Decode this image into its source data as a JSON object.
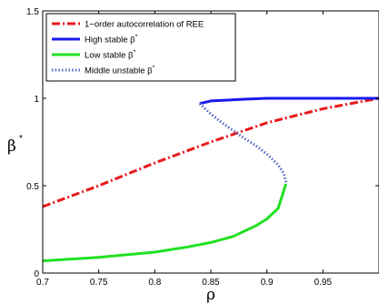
{
  "chart_data": {
    "type": "line",
    "xlabel": "ρ",
    "ylabel": "β",
    "ylabel_sup": "*",
    "xlim": [
      0.7,
      1.0
    ],
    "ylim": [
      0,
      1.5
    ],
    "x_ticks": [
      0.7,
      0.75,
      0.8,
      0.85,
      0.9,
      0.95
    ],
    "x_tick_labels": [
      "0.7",
      "0.75",
      "0.8",
      "0.85",
      "0.9",
      "0.95"
    ],
    "y_ticks": [
      0,
      0.5,
      1,
      1.5
    ],
    "y_tick_labels": [
      "0",
      "0.5",
      "1",
      "1.5"
    ],
    "grid": false,
    "legend_position": "top-left",
    "series": [
      {
        "name": "1−order autocorrelation of REE",
        "color": "#e8191a",
        "style": "dash-dot",
        "x": [
          0.7,
          0.75,
          0.8,
          0.85,
          0.9,
          0.95,
          1.0
        ],
        "y": [
          0.38,
          0.5,
          0.63,
          0.75,
          0.86,
          0.94,
          1.0
        ]
      },
      {
        "name": "High stable β",
        "name_sup": "*",
        "color": "#1a1aee",
        "style": "solid",
        "x": [
          0.84,
          0.85,
          0.88,
          0.9,
          0.95,
          1.0
        ],
        "y": [
          0.97,
          0.985,
          0.995,
          1.0,
          1.0,
          1.0
        ]
      },
      {
        "name": "Low stable β",
        "name_sup": "*",
        "color": "#22e022",
        "style": "solid",
        "x": [
          0.7,
          0.75,
          0.8,
          0.83,
          0.85,
          0.87,
          0.88,
          0.89,
          0.9,
          0.91,
          0.917
        ],
        "y": [
          0.07,
          0.09,
          0.12,
          0.15,
          0.175,
          0.21,
          0.24,
          0.27,
          0.31,
          0.37,
          0.51
        ]
      },
      {
        "name": "Middle unstable β",
        "name_sup": "*",
        "color": "#5a6ac8",
        "style": "dotted",
        "x": [
          0.84,
          0.85,
          0.86,
          0.87,
          0.88,
          0.89,
          0.9,
          0.91,
          0.915,
          0.917
        ],
        "y": [
          0.97,
          0.91,
          0.86,
          0.815,
          0.77,
          0.73,
          0.68,
          0.62,
          0.57,
          0.52
        ]
      }
    ]
  }
}
